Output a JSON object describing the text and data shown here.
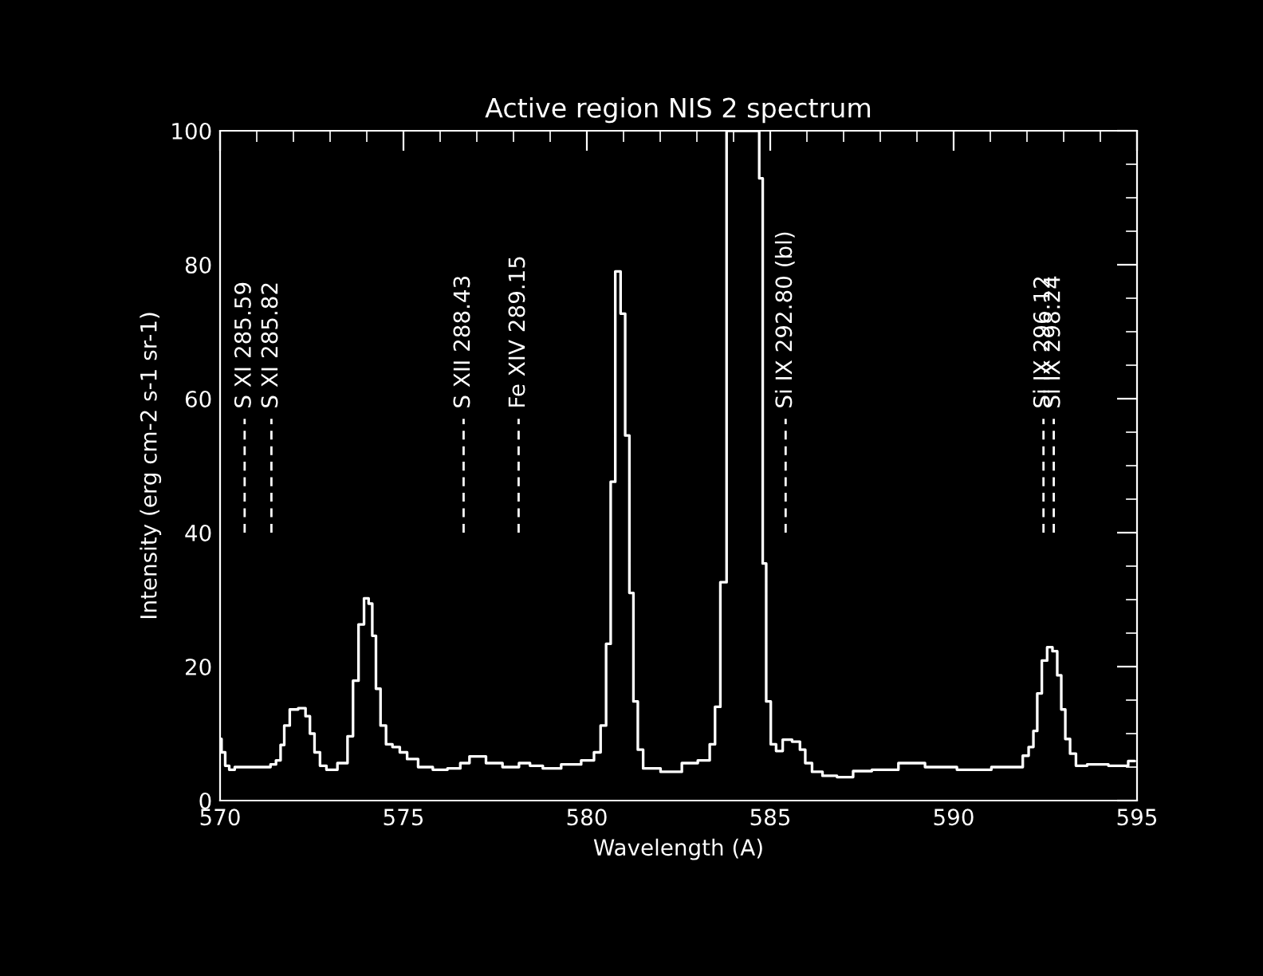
{
  "chart_data": {
    "type": "step",
    "title": "Active region NIS 2 spectrum",
    "xlabel": "Wavelength (A)",
    "ylabel": "Intensity (erg cm-2 s-1 sr-1)",
    "x": [
      570.0,
      570.08,
      570.2,
      570.3,
      570.5,
      571.3,
      571.45,
      571.6,
      571.7,
      571.8,
      572.0,
      572.26,
      572.4,
      572.5,
      572.65,
      572.8,
      573.0,
      573.4,
      573.55,
      573.7,
      573.85,
      574.0,
      574.1,
      574.2,
      574.3,
      574.45,
      574.6,
      574.8,
      575.0,
      575.2,
      575.6,
      576.0,
      576.4,
      576.7,
      576.9,
      577.1,
      577.4,
      578.0,
      578.3,
      578.6,
      579.0,
      579.6,
      580.09,
      580.3,
      580.45,
      580.6,
      580.7,
      580.85,
      580.99,
      581.1,
      581.22,
      581.32,
      581.46,
      581.61,
      582.41,
      582.77,
      583.28,
      583.42,
      583.57,
      583.71,
      583.91,
      584.1,
      584.3,
      584.5,
      584.65,
      584.75,
      584.84,
      584.94,
      585.09,
      585.23,
      585.45,
      585.74,
      585.88,
      586.03,
      586.25,
      586.6,
      587.04,
      587.48,
      588.06,
      588.93,
      589.51,
      590.67,
      591.39,
      591.8,
      591.97,
      592.12,
      592.23,
      592.33,
      592.48,
      592.62,
      592.77,
      592.88,
      592.99,
      593.1,
      593.25,
      593.42,
      593.86,
      594.58,
      594.94
    ],
    "values": [
      9.2,
      7.2,
      5.2,
      4.6,
      5.0,
      5.0,
      5.4,
      6.0,
      8.3,
      11.2,
      13.6,
      13.8,
      12.6,
      10.0,
      7.2,
      5.2,
      4.6,
      5.6,
      9.6,
      17.9,
      26.3,
      30.2,
      29.4,
      24.6,
      16.7,
      11.2,
      8.4,
      8.0,
      7.2,
      6.2,
      5.0,
      4.6,
      4.8,
      5.6,
      6.6,
      6.6,
      5.6,
      5.0,
      5.6,
      5.2,
      4.8,
      5.4,
      6.0,
      7.2,
      11.2,
      23.4,
      47.6,
      79.0,
      72.7,
      54.5,
      31.0,
      14.8,
      7.6,
      4.8,
      4.3,
      5.6,
      6.0,
      8.4,
      14.0,
      32.6,
      100,
      100,
      100,
      100,
      100,
      92.9,
      35.4,
      14.8,
      8.4,
      7.4,
      9.1,
      8.8,
      7.6,
      5.6,
      4.3,
      3.7,
      3.5,
      4.4,
      4.6,
      5.6,
      5.0,
      4.6,
      5.0,
      5.0,
      6.7,
      8.0,
      10.4,
      16.0,
      20.9,
      22.9,
      22.3,
      18.7,
      13.6,
      9.2,
      7.0,
      5.2,
      5.4,
      5.2,
      5.9
    ],
    "color": "#ffffff",
    "xlim": [
      570,
      595
    ],
    "xticks": [
      570,
      575,
      580,
      585,
      590,
      595
    ],
    "ylim": [
      0,
      100
    ],
    "yticks": [
      0,
      20,
      40,
      60,
      80,
      100
    ],
    "ref_lines": [
      {
        "axis": "x",
        "value": 570.67,
        "label": "S XI 285.59",
        "line_style": "dashed"
      },
      {
        "axis": "x",
        "value": 571.4,
        "label": "S XI 285.82",
        "line_style": "dashed"
      },
      {
        "axis": "x",
        "value": 576.64,
        "label": "S XII 288.43",
        "line_style": "dashed"
      },
      {
        "axis": "x",
        "value": 578.14,
        "label": "Fe XIV 289.15",
        "line_style": "dashed"
      },
      {
        "axis": "x",
        "value": 585.42,
        "label": "Si IX 292.80 (bl)",
        "line_style": "dashed"
      },
      {
        "axis": "x",
        "value": 592.45,
        "label": "Si IX 296.12",
        "line_style": "dashed"
      },
      {
        "axis": "x",
        "value": 592.73,
        "label": "Si IX 298.24",
        "line_style": "dashed"
      }
    ]
  }
}
